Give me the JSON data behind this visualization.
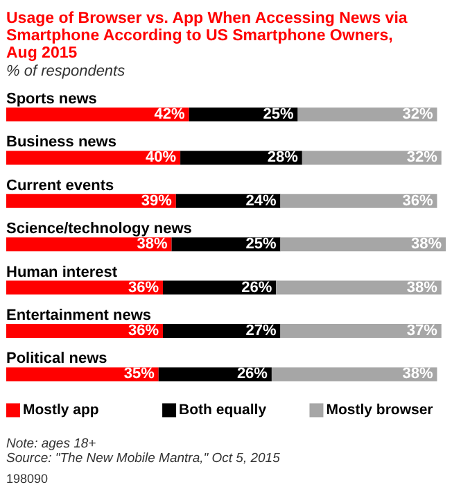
{
  "chart_data": {
    "type": "bar",
    "orientation": "horizontal",
    "stacked": true,
    "title": "Usage of Browser vs. App When Accessing News via Smartphone According to US Smartphone Owners, Aug 2015",
    "subtitle": "% of respondents",
    "categories": [
      "Sports news",
      "Business news",
      "Current events",
      "Science/technology news",
      "Human interest",
      "Entertainment news",
      "Political news"
    ],
    "series": [
      {
        "name": "Mostly app",
        "color": "#ff0000",
        "values": [
          42,
          40,
          39,
          38,
          36,
          36,
          35
        ],
        "value_labels": [
          "42%",
          "40%",
          "39%",
          "38%",
          "36%",
          "36%",
          "35%"
        ]
      },
      {
        "name": "Both equally",
        "color": "#000000",
        "values": [
          25,
          28,
          24,
          25,
          26,
          27,
          26
        ],
        "value_labels": [
          "25%",
          "28%",
          "24%",
          "25%",
          "26%",
          "27%",
          "26%"
        ]
      },
      {
        "name": "Mostly browser",
        "color": "#a6a6a6",
        "values": [
          32,
          32,
          36,
          38,
          38,
          37,
          38
        ],
        "value_labels": [
          "32%",
          "32%",
          "36%",
          "38%",
          "38%",
          "37%",
          "38%"
        ]
      }
    ],
    "legend": "bottom",
    "annotations": [
      "Note: ages 18+",
      "Source: \"The New Mobile Mantra,\" Oct 5, 2015",
      "198090"
    ]
  }
}
